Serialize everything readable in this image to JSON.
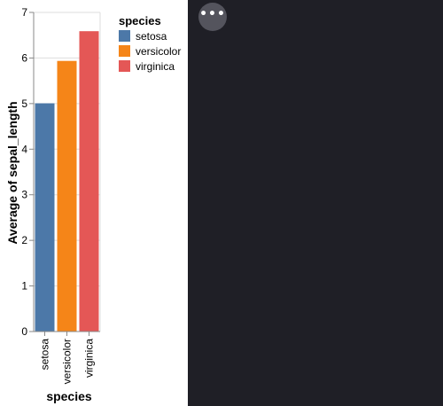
{
  "more_button": {
    "icon": "more-horizontal-icon"
  },
  "chart_data": {
    "type": "bar",
    "categories": [
      "setosa",
      "versicolor",
      "virginica"
    ],
    "values": [
      5.006,
      5.936,
      6.588
    ],
    "colors": [
      "#4c78a8",
      "#f58518",
      "#e45756"
    ],
    "xlabel": "species",
    "ylabel": "Average of sepal_length",
    "ylim": [
      0,
      7
    ],
    "yticks": [
      "0",
      "1",
      "2",
      "3",
      "4",
      "5",
      "6",
      "7"
    ],
    "grid": true,
    "legend": {
      "title": "species",
      "position": "top-right",
      "items": [
        "setosa",
        "versicolor",
        "virginica"
      ]
    }
  }
}
